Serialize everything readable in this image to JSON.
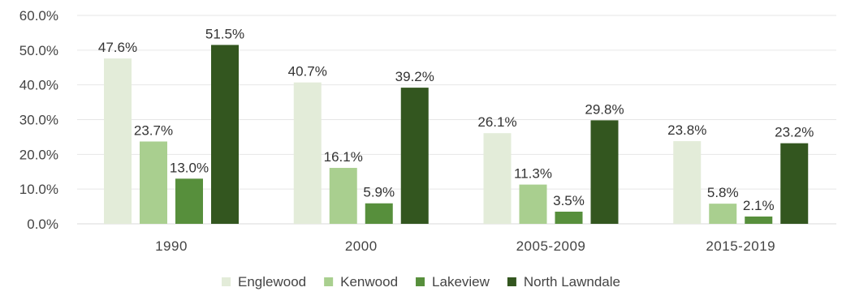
{
  "chart_data": {
    "type": "bar",
    "categories": [
      "1990",
      "2000",
      "2005-2009",
      "2015-2019"
    ],
    "series": [
      {
        "name": "Englewood",
        "color": "#e3ecd9",
        "values": [
          47.6,
          40.7,
          26.1,
          23.8
        ],
        "labels": [
          "47.6%",
          "40.7%",
          "26.1%",
          "23.8%"
        ]
      },
      {
        "name": "Kenwood",
        "color": "#a9cf8f",
        "values": [
          23.7,
          16.1,
          11.3,
          5.8
        ],
        "labels": [
          "23.7%",
          "16.1%",
          "11.3%",
          "5.8%"
        ]
      },
      {
        "name": "Lakeview",
        "color": "#578f3c",
        "values": [
          13.0,
          5.9,
          3.5,
          2.1
        ],
        "labels": [
          "13.0%",
          "5.9%",
          "3.5%",
          "2.1%"
        ]
      },
      {
        "name": "North Lawndale",
        "color": "#33561f",
        "values": [
          51.5,
          39.2,
          29.8,
          23.2
        ],
        "labels": [
          "51.5%",
          "39.2%",
          "29.8%",
          "23.2%"
        ]
      }
    ],
    "ylim": [
      0,
      60
    ],
    "yticks": [
      0,
      10,
      20,
      30,
      40,
      50,
      60
    ],
    "ytick_labels": [
      "0.0%",
      "10.0%",
      "20.0%",
      "30.0%",
      "40.0%",
      "50.0%",
      "60.0%"
    ],
    "grid": true,
    "legend": "bottom-center"
  }
}
